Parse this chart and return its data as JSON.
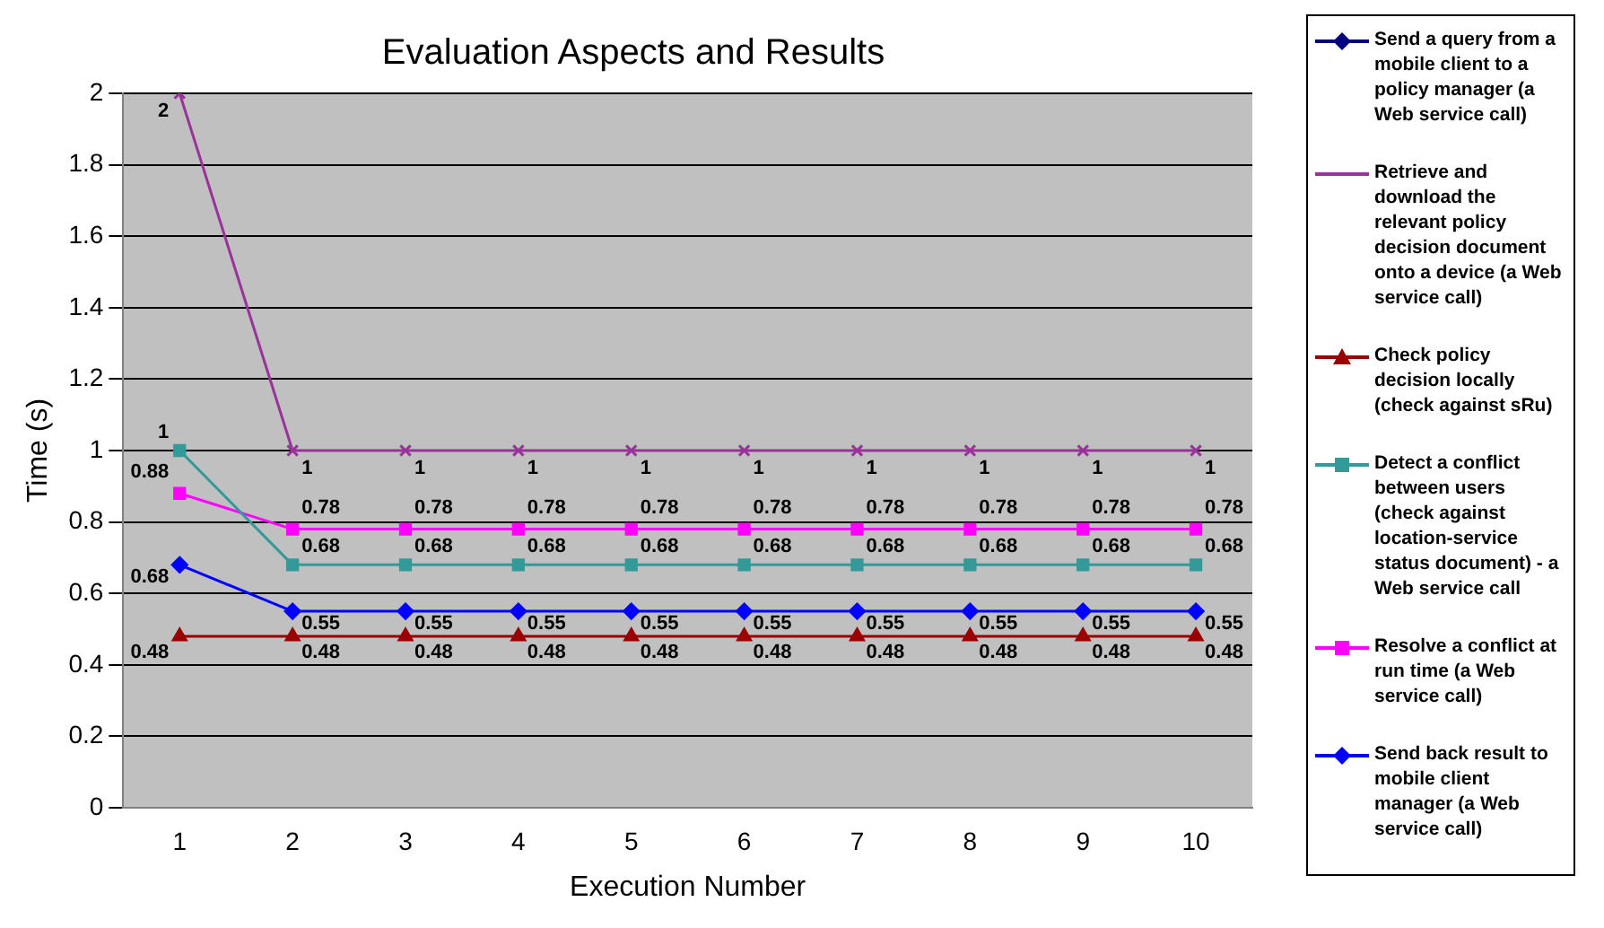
{
  "chart_data": {
    "type": "line",
    "title": "Evaluation Aspects and Results",
    "xlabel": "Execution Number",
    "ylabel": "Time (s)",
    "categories": [
      "1",
      "2",
      "3",
      "4",
      "5",
      "6",
      "7",
      "8",
      "9",
      "10"
    ],
    "series": [
      {
        "name": "Send a query from a mobile client to a policy manager (a Web service call)",
        "color": "#000080",
        "marker": "diamond",
        "values": [
          null,
          null,
          null,
          null,
          null,
          null,
          null,
          null,
          null,
          null
        ]
      },
      {
        "name": "Retrieve and download the relevant policy decision document onto a device (a Web service call)",
        "color": "#993399",
        "marker": "cross",
        "values": [
          2,
          1,
          1,
          1,
          1,
          1,
          1,
          1,
          1,
          1
        ]
      },
      {
        "name": "Check policy decision locally (check against sRu)",
        "color": "#990000",
        "marker": "triangle",
        "values": [
          0.48,
          0.48,
          0.48,
          0.48,
          0.48,
          0.48,
          0.48,
          0.48,
          0.48,
          0.48
        ]
      },
      {
        "name": "Detect a conflict between users (check against location-service status document) - a Web service call",
        "color": "#339999",
        "marker": "square",
        "values": [
          1,
          0.68,
          0.68,
          0.68,
          0.68,
          0.68,
          0.68,
          0.68,
          0.68,
          0.68
        ]
      },
      {
        "name": "Resolve a conflict at run time (a Web service call)",
        "color": "#ff00ff",
        "marker": "square",
        "values": [
          0.88,
          0.78,
          0.78,
          0.78,
          0.78,
          0.78,
          0.78,
          0.78,
          0.78,
          0.78
        ]
      },
      {
        "name": "Send back result to mobile client manager (a Web service call)",
        "color": "#0000ff",
        "marker": "diamond",
        "values": [
          0.68,
          0.55,
          0.55,
          0.55,
          0.55,
          0.55,
          0.55,
          0.55,
          0.55,
          0.55
        ]
      }
    ],
    "ylim": [
      0,
      2
    ],
    "yticks": [
      0,
      0.2,
      0.4,
      0.6,
      0.8,
      1,
      1.2,
      1.4,
      1.6,
      1.8,
      2
    ],
    "grid": "y",
    "legend": "right",
    "data_labels": true
  }
}
